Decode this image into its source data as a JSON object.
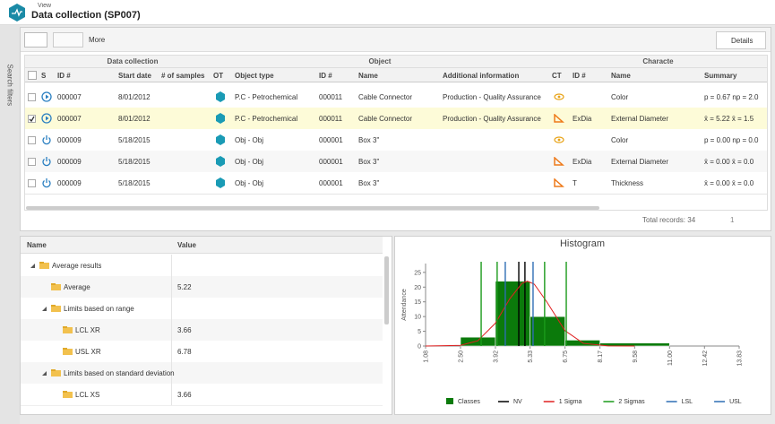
{
  "header": {
    "breadcrumb": "View",
    "title": "Data collection (SP007)"
  },
  "sidebar": {
    "label": "Search filters"
  },
  "toolbar": {
    "more": "More",
    "details": "Details"
  },
  "table": {
    "groups": [
      "Data collection",
      "Object",
      "Characte"
    ],
    "columns": [
      "S",
      "ID #",
      "Start date",
      "# of samples",
      "OT",
      "Object type",
      "ID #",
      "Name",
      "Additional information",
      "CT",
      "ID #",
      "Name",
      "Summary"
    ],
    "rows": [
      {
        "status": "play",
        "id": "000007",
        "start": "8/01/2012",
        "objtype": "P.C - Petrochemical",
        "objid": "000011",
        "name": "Cable Connector",
        "info": "Production - Quality Assurance",
        "ct": "eye",
        "ctname": "Color",
        "summary": "p = 0.67  np = 2.0"
      },
      {
        "status": "play",
        "selected": true,
        "id": "000007",
        "start": "8/01/2012",
        "objtype": "P.C - Petrochemical",
        "objid": "000011",
        "name": "Cable Connector",
        "info": "Production - Quality Assurance",
        "ct": "ruler",
        "ctid": "ExDia",
        "ctname": "External Diameter",
        "summary": "x̄ = 5.22  x̄ = 1.5"
      },
      {
        "status": "power",
        "id": "000009",
        "start": "5/18/2015",
        "objtype": "Obj - Obj",
        "objid": "000001",
        "name": "Box 3\"",
        "ct": "eye",
        "ctname": "Color",
        "summary": "p = 0.00  np = 0.0"
      },
      {
        "status": "power",
        "id": "000009",
        "start": "5/18/2015",
        "objtype": "Obj - Obj",
        "objid": "000001",
        "name": "Box 3\"",
        "ct": "ruler",
        "ctid": "ExDia",
        "ctname": "External Diameter",
        "summary": "x̄ = 0.00  x̄ = 0.0"
      },
      {
        "status": "power",
        "id": "000009",
        "start": "5/18/2015",
        "objtype": "Obj - Obj",
        "objid": "000001",
        "name": "Box 3\"",
        "ct": "ruler",
        "ctid": "T",
        "ctname": "Thickness",
        "summary": "x̄ = 0.00  x̄ = 0.0"
      }
    ]
  },
  "footer": {
    "total": "Total records: 34",
    "page": "1"
  },
  "tree": {
    "columns": [
      "Name",
      "Value"
    ],
    "rows": [
      {
        "name": "Average results",
        "level": 0,
        "expanded": true
      },
      {
        "name": "Average",
        "level": 1,
        "value": "5.22"
      },
      {
        "name": "Limits based on range",
        "level": 1,
        "expanded": true
      },
      {
        "name": "LCL XR",
        "level": 2,
        "value": "3.66"
      },
      {
        "name": "USL XR",
        "level": 2,
        "value": "6.78"
      },
      {
        "name": "Limits based on standard deviation",
        "level": 1,
        "expanded": true
      },
      {
        "name": "LCL XS",
        "level": 2,
        "value": "3.66"
      }
    ]
  },
  "chart_data": {
    "type": "histogram",
    "title": "Histogram",
    "y_label": "Attendance",
    "name": "Classes",
    "color": "#0b7a0b",
    "bins": [
      2.5,
      3.92,
      5.33,
      6.75,
      8.17,
      11.0
    ],
    "values": [
      3,
      22,
      10,
      2,
      1
    ],
    "xlim": [
      1.08,
      13.83
    ],
    "ylim": [
      0,
      28
    ],
    "xticks": [
      {
        "value": 1.08,
        "label": "1.08"
      },
      {
        "value": 2.5,
        "label": "2.50"
      },
      {
        "value": 3.92,
        "label": "3.92"
      },
      {
        "value": 5.33,
        "label": "5.33"
      },
      {
        "value": 6.75,
        "label": "6.75"
      },
      {
        "value": 8.17,
        "label": "8.17"
      },
      {
        "value": 9.58,
        "label": "9.58"
      },
      {
        "value": 11,
        "label": "11.00"
      },
      {
        "value": 12.42,
        "label": "12.42"
      },
      {
        "value": 13.83,
        "label": "13.83"
      }
    ],
    "yticks": [
      0,
      5,
      10,
      15,
      20,
      25
    ],
    "series": [
      {
        "name": "NV",
        "color": "#000000",
        "values": [
          4.87,
          5.12
        ]
      },
      {
        "name": "1 Sigma",
        "color": "#e02020",
        "x": [
          1.08,
          2.5,
          3.2,
          3.92,
          4.5,
          5.0,
          5.22,
          5.5,
          6.0,
          6.75,
          7.5,
          8.5,
          9.58
        ],
        "values": [
          0,
          0.23,
          1.77,
          7.75,
          16.0,
          21.3,
          22,
          21.0,
          15.1,
          5.2,
          0.89,
          0.03,
          0
        ]
      },
      {
        "name": "2 Sigmas",
        "color": "#1a9a1a",
        "values": [
          3.34,
          3.99,
          5.92,
          6.8
        ]
      },
      {
        "name": "LSL",
        "color": "#2e6db4",
        "values": [
          4.32
        ]
      },
      {
        "name": "USL",
        "color": "#2e6db4",
        "values": [
          5.45
        ]
      }
    ]
  }
}
